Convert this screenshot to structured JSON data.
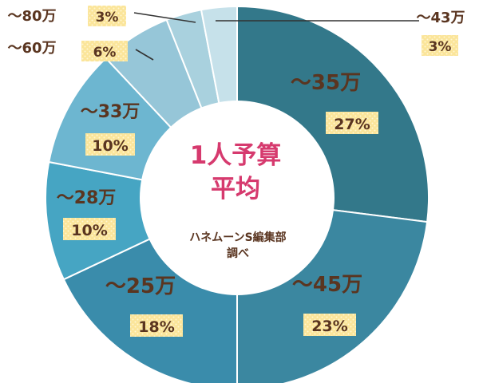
{
  "chart_data": {
    "type": "pie",
    "title_lines": [
      "1人予算",
      "平均"
    ],
    "source_lines": [
      "ハネムーンS編集部",
      "調べ"
    ],
    "slices": [
      {
        "label": "〜35万",
        "pct": "27%",
        "value": 27,
        "color": "#33788a"
      },
      {
        "label": "〜45万",
        "pct": "23%",
        "value": 23,
        "color": "#3b87a0"
      },
      {
        "label": "〜25万",
        "pct": "18%",
        "value": 18,
        "color": "#3a8cab"
      },
      {
        "label": "〜28万",
        "pct": "10%",
        "value": 10,
        "color": "#46a5c3"
      },
      {
        "label": "〜33万",
        "pct": "10%",
        "value": 10,
        "color": "#6db6d0"
      },
      {
        "label": "〜60万",
        "pct": "6%",
        "value": 6,
        "color": "#96c6d8"
      },
      {
        "label": "〜80万",
        "pct": "3%",
        "value": 3,
        "color": "#a9d1de"
      },
      {
        "label": "〜43万",
        "pct": "3%",
        "value": 3,
        "color": "#c6e1ea"
      }
    ]
  },
  "colors": {
    "label_text": "#5a3520",
    "pct_box_fill": "#fbe59a",
    "pct_box_dots": "#fff6d4",
    "center_title": "#d63a6e",
    "slice_border": "#ffffff"
  }
}
